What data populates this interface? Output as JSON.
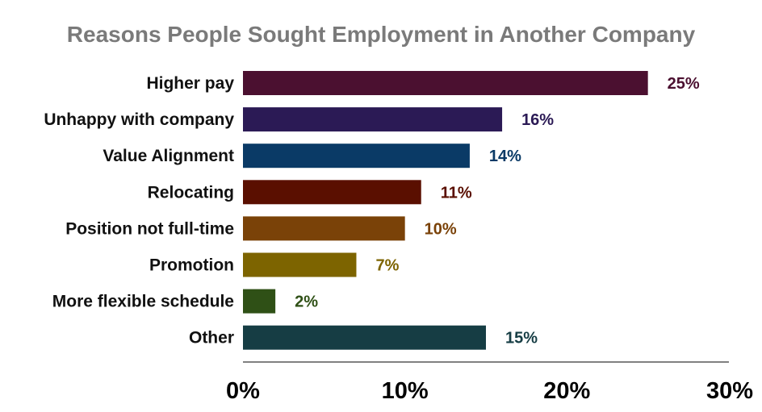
{
  "chart_data": {
    "type": "bar",
    "orientation": "horizontal",
    "title": "Reasons People Sought Employment in Another Company",
    "categories": [
      "Higher pay",
      "Unhappy with company",
      "Value Alignment",
      "Relocating",
      "Position not full-time",
      "Promotion",
      "More flexible schedule",
      "Other"
    ],
    "values": [
      25,
      16,
      14,
      11,
      10,
      7,
      2,
      15
    ],
    "value_labels": [
      "25%",
      "16%",
      "14%",
      "11%",
      "10%",
      "7%",
      "2%",
      "15%"
    ],
    "colors": [
      "#4b1030",
      "#2b1a55",
      "#0a3a66",
      "#5a0f00",
      "#7a4208",
      "#7d6400",
      "#2f5016",
      "#163d44"
    ],
    "xlim": [
      0,
      30
    ],
    "xticks": [
      0,
      10,
      20,
      30
    ],
    "xtick_labels": [
      "0%",
      "10%",
      "20%",
      "30%"
    ],
    "grid": false,
    "legend": "none"
  }
}
